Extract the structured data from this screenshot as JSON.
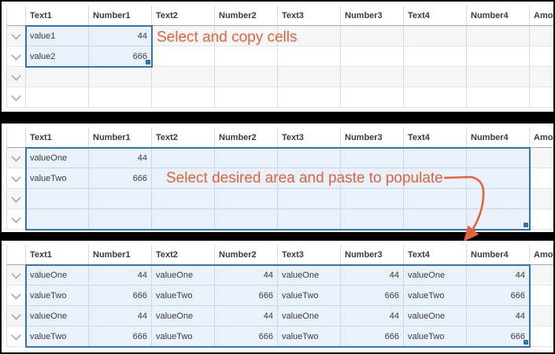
{
  "colors": {
    "selection-border": "#2e75b5",
    "selection-fill": "#e9f1fb",
    "annotation-orange": "#e8613b",
    "row-stripe": "#f6f6f6",
    "gridline": "#d9d9d9",
    "header-underline": "#a6a6a6",
    "chevron-gray": "#b4b4b4",
    "separator-black": "#000000"
  },
  "columns": [
    "Text1",
    "Number1",
    "Text2",
    "Number2",
    "Text3",
    "Number3",
    "Text4",
    "Number4",
    "Amount"
  ],
  "number_column_indexes": [
    1,
    3,
    5,
    7
  ],
  "grids": [
    {
      "id": "copy-source",
      "caption": "Select and copy cells",
      "rows": [
        [
          "value1",
          "44",
          "",
          "",
          "",
          "",
          "",
          ""
        ],
        [
          "value2",
          "666",
          "",
          "",
          "",
          "",
          "",
          ""
        ],
        [
          "",
          "",
          "",
          "",
          "",
          "",
          "",
          ""
        ],
        [
          "",
          "",
          "",
          "",
          "",
          "",
          "",
          ""
        ]
      ],
      "selection": {
        "row_start": 0,
        "row_end": 1,
        "col_start": 0,
        "col_end": 1
      }
    },
    {
      "id": "paste-target",
      "caption": "Select desired area and paste to populate",
      "rows": [
        [
          "valueOne",
          "44",
          "",
          "",
          "",
          "",
          "",
          ""
        ],
        [
          "valueTwo",
          "666",
          "",
          "",
          "",
          "",
          "",
          ""
        ],
        [
          "",
          "",
          "",
          "",
          "",
          "",
          "",
          ""
        ],
        [
          "",
          "",
          "",
          "",
          "",
          "",
          "",
          ""
        ]
      ],
      "selection": {
        "row_start": 0,
        "row_end": 3,
        "col_start": 0,
        "col_end": 7
      }
    },
    {
      "id": "paste-result",
      "caption": "",
      "rows": [
        [
          "valueOne",
          "44",
          "valueOne",
          "44",
          "valueOne",
          "44",
          "valueOne",
          "44"
        ],
        [
          "valueTwo",
          "666",
          "valueTwo",
          "666",
          "valueTwo",
          "666",
          "valueTwo",
          "666"
        ],
        [
          "valueOne",
          "44",
          "valueOne",
          "44",
          "valueOne",
          "44",
          "valueOne",
          "44"
        ],
        [
          "valueTwo",
          "666",
          "valueTwo",
          "666",
          "valueTwo",
          "666",
          "valueTwo",
          "666"
        ]
      ],
      "selection": {
        "row_start": 0,
        "row_end": 3,
        "col_start": 0,
        "col_end": 7
      }
    }
  ]
}
